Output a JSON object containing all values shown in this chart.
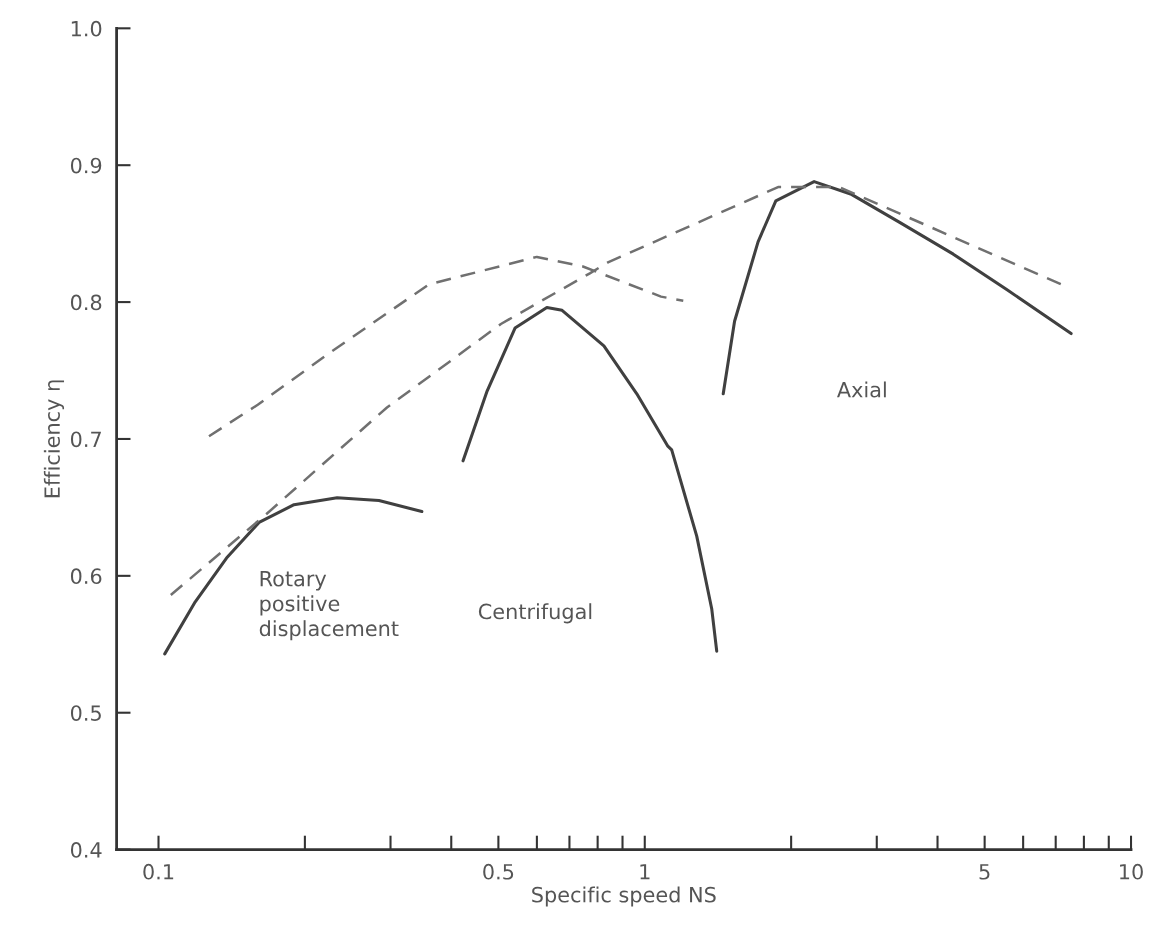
{
  "chart_data": {
    "type": "line",
    "xlabel": "Specific speed NS",
    "ylabel": "Efficiency η",
    "log": "x",
    "grid": false,
    "marker": "none",
    "xlim": [
      0.082,
      10
    ],
    "ylim": [
      0.4,
      1.0
    ],
    "xticks": [
      0.1,
      {
        "value": 0.2,
        "label": null
      },
      {
        "value": 0.3,
        "label": null
      },
      {
        "value": 0.4,
        "label": null
      },
      0.5,
      {
        "value": 0.6,
        "label": null
      },
      {
        "value": 0.7,
        "label": null
      },
      {
        "value": 0.8,
        "label": null
      },
      {
        "value": 0.9,
        "label": null
      },
      1,
      {
        "value": 2,
        "label": null
      },
      {
        "value": 3,
        "label": null
      },
      {
        "value": 4,
        "label": null
      },
      5,
      {
        "value": 6,
        "label": null
      },
      {
        "value": 7,
        "label": null
      },
      {
        "value": 8,
        "label": null
      },
      {
        "value": 9,
        "label": null
      },
      10
    ],
    "yticks": [
      0.4,
      0.5,
      0.6,
      0.7,
      0.8,
      0.9,
      {
        "value": 1,
        "label": "1.0"
      }
    ],
    "series": [
      {
        "color": "#404040",
        "line_style": "solid",
        "x": [
          0.103,
          0.119,
          0.138,
          0.161,
          0.19,
          0.233,
          0.284,
          0.348
        ],
        "values": [
          0.543,
          0.581,
          0.613,
          0.639,
          0.652,
          0.657,
          0.655,
          0.647
        ]
      },
      {
        "color": "#404040",
        "line_style": "solid",
        "x": [
          0.423,
          0.474,
          0.541,
          0.629,
          0.676,
          0.824,
          0.963,
          1.114,
          1.136,
          1.279,
          1.373,
          1.406
        ],
        "values": [
          0.684,
          0.735,
          0.781,
          0.796,
          0.794,
          0.768,
          0.733,
          0.695,
          0.692,
          0.629,
          0.576,
          0.545
        ]
      },
      {
        "color": "#404040",
        "line_style": "solid",
        "x": [
          1.45,
          1.53,
          1.71,
          1.86,
          2.23,
          2.65,
          3.35,
          4.31,
          5.56,
          7.53
        ],
        "values": [
          0.733,
          0.786,
          0.844,
          0.874,
          0.888,
          0.879,
          0.858,
          0.835,
          0.809,
          0.777
        ]
      },
      {
        "color": "#707070",
        "line_style": "dashed",
        "x": [
          0.106,
          0.169,
          0.295,
          0.506,
          0.771,
          0.84,
          1.88,
          2.51,
          7.18
        ],
        "values": [
          0.586,
          0.647,
          0.723,
          0.784,
          0.821,
          0.829,
          0.884,
          0.884,
          0.813
        ]
      },
      {
        "color": "#707070",
        "line_style": "dashed",
        "x": [
          0.127,
          0.16,
          0.225,
          0.36,
          0.6,
          0.746,
          1.08,
          1.2
        ],
        "values": [
          0.702,
          0.725,
          0.763,
          0.813,
          0.833,
          0.826,
          0.804,
          0.801
        ]
      }
    ],
    "annotations": [
      "Rotary\npositive\ndisplacement",
      "Centrifugal",
      "Axial"
    ]
  }
}
